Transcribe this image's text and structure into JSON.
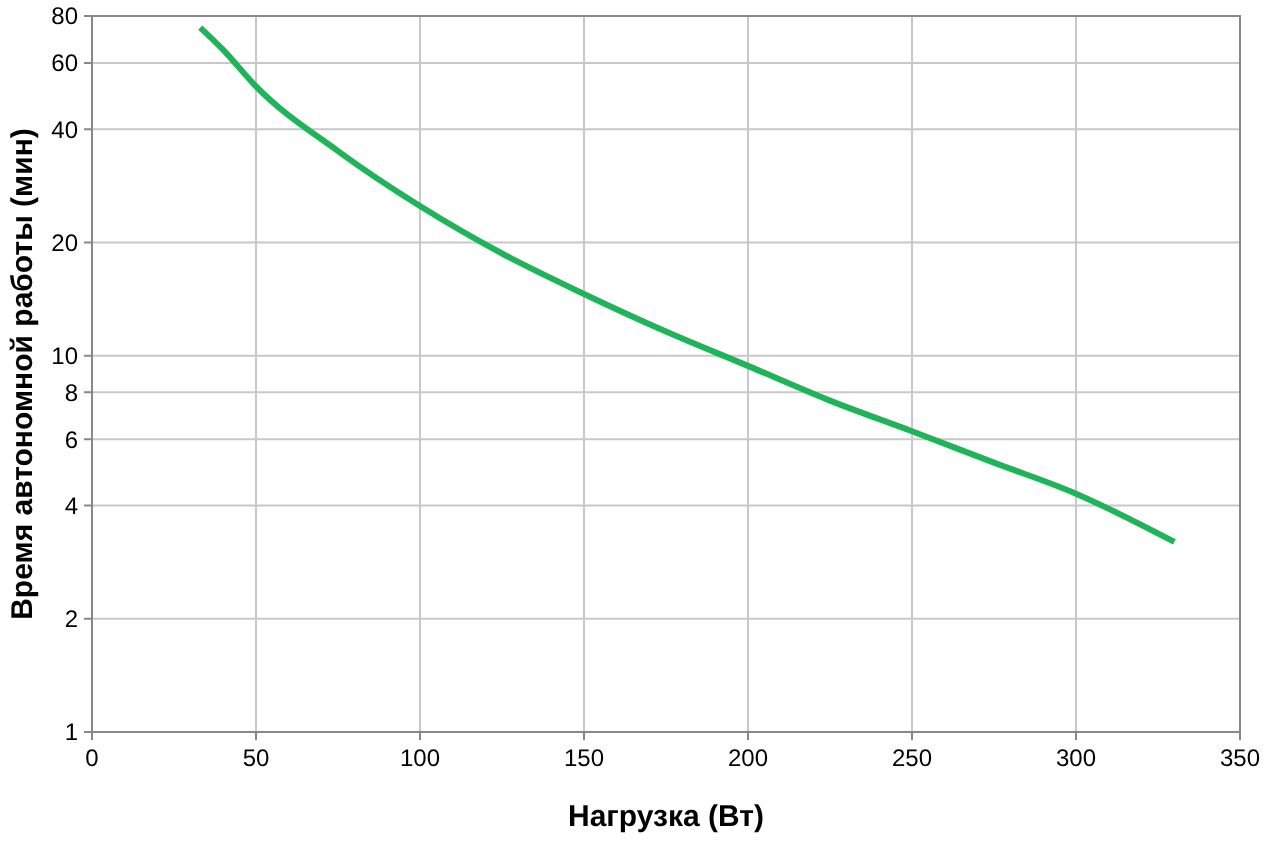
{
  "chart_data": {
    "type": "line",
    "xlabel": "Нагрузка (Вт)",
    "ylabel": "Время автономной работы (мин)",
    "log": "y",
    "grid": true,
    "xlim": [
      0,
      350
    ],
    "xticks": [
      0,
      50,
      100,
      150,
      200,
      250,
      300,
      350
    ],
    "ylim": [
      1,
      80
    ],
    "yticks": [
      1,
      2,
      4,
      6,
      8,
      10,
      20,
      40,
      60,
      80
    ],
    "x": [
      33,
      40,
      50,
      75,
      100,
      125,
      150,
      175,
      200,
      225,
      250,
      275,
      300,
      330
    ],
    "series": [
      {
        "color": "#1fb45a",
        "values": [
          74.5,
          65,
          52,
          35,
          25,
          18.7,
          14.6,
          11.6,
          9.4,
          7.6,
          6.3,
          5.2,
          4.3,
          3.2
        ]
      }
    ]
  }
}
